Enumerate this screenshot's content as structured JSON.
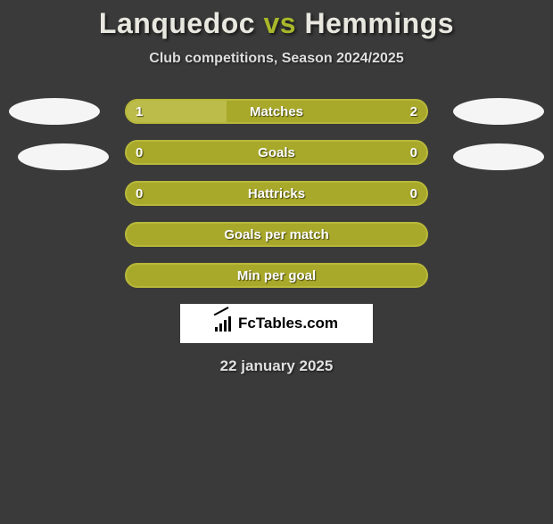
{
  "title": {
    "player1": "Lanquedoc",
    "vs": "vs",
    "player2": "Hemmings"
  },
  "subtitle": "Club competitions, Season 2024/2025",
  "colors": {
    "bar_border": "#a8a82a",
    "bar_fill_left": "#a8a82a",
    "bar_bg_empty": "#a8a82a",
    "ellipse": "#f5f5f5"
  },
  "bars": [
    {
      "label": "Matches",
      "left_value": "1",
      "right_value": "2",
      "left_pct": 33.3,
      "fill_color": "#a8a82a",
      "border_color": "#b8b83a",
      "bg_color": "#a8a82a",
      "left_segment_color": "#bcbc4a"
    },
    {
      "label": "Goals",
      "left_value": "0",
      "right_value": "0",
      "left_pct": 0,
      "fill_color": "#a8a82a",
      "border_color": "#b8b83a",
      "bg_color": "#a8a82a",
      "left_segment_color": "#a8a82a"
    },
    {
      "label": "Hattricks",
      "left_value": "0",
      "right_value": "0",
      "left_pct": 0,
      "fill_color": "#a8a82a",
      "border_color": "#b8b83a",
      "bg_color": "#a8a82a",
      "left_segment_color": "#a8a82a"
    },
    {
      "label": "Goals per match",
      "left_value": "",
      "right_value": "",
      "left_pct": 0,
      "fill_color": "#a8a82a",
      "border_color": "#b8b83a",
      "bg_color": "#a8a82a",
      "left_segment_color": "#a8a82a"
    },
    {
      "label": "Min per goal",
      "left_value": "",
      "right_value": "",
      "left_pct": 0,
      "fill_color": "#a8a82a",
      "border_color": "#b8b83a",
      "bg_color": "#a8a82a",
      "left_segment_color": "#a8a82a"
    }
  ],
  "logo_text": "FcTables.com",
  "date": "22 january 2025",
  "background_color": "#3a3a3a"
}
